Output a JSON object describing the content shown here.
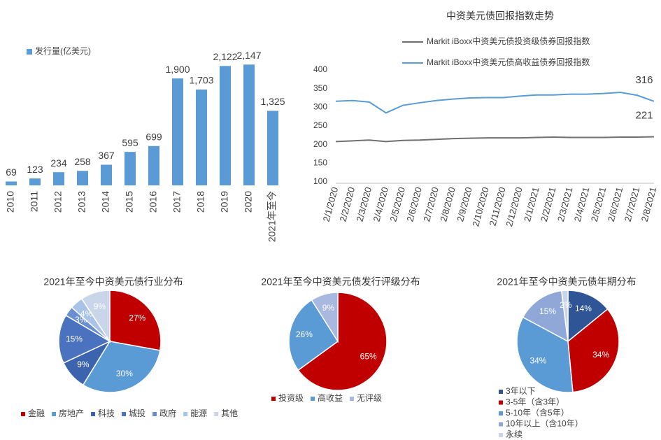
{
  "chart_data": [
    {
      "type": "bar",
      "legend": "发行量(亿美元)",
      "color": "#5b9bd5",
      "categories": [
        "2010",
        "2011",
        "2012",
        "2013",
        "2014",
        "2015",
        "2016",
        "2017",
        "2018",
        "2019",
        "2020",
        "2021年至今"
      ],
      "values": [
        69,
        123,
        234,
        258,
        367,
        595,
        699,
        1900,
        1703,
        2122,
        2147,
        1325
      ],
      "value_labels": [
        "69",
        "123",
        "234",
        "258",
        "367",
        "595",
        "699",
        "1,900",
        "1,703",
        "2,122",
        "2,147",
        "1,325"
      ],
      "ylim": [
        0,
        2300
      ]
    },
    {
      "type": "line",
      "title": "中资美元债回报指数走势",
      "categories": [
        "2/1/2020",
        "2/2/2020",
        "2/3/2020",
        "2/4/2020",
        "2/5/2020",
        "2/6/2020",
        "2/7/2020",
        "2/8/2020",
        "2/9/2020",
        "2/10/2020",
        "2/11/2020",
        "2/12/2020",
        "2/1/2021",
        "2/2/2021",
        "2/3/2021",
        "2/4/2021",
        "2/5/2021",
        "2/6/2021",
        "2/7/2021",
        "2/8/2021"
      ],
      "series": [
        {
          "name": "Markit iBoxx中资美元债投资级债券回报指数",
          "color": "#707070",
          "values": [
            208,
            210,
            212,
            208,
            211,
            212,
            214,
            216,
            217,
            218,
            218,
            218,
            219,
            220,
            219,
            219,
            219,
            220,
            220,
            221
          ]
        },
        {
          "name": "Markit iBoxx中资美元债高收益债券回报指数",
          "color": "#5b9bd5",
          "values": [
            316,
            318,
            314,
            285,
            305,
            312,
            318,
            322,
            325,
            326,
            326,
            330,
            333,
            333,
            335,
            335,
            337,
            340,
            332,
            316
          ]
        }
      ],
      "ylim": [
        100,
        400
      ],
      "yticks": [
        100,
        150,
        200,
        250,
        300,
        350,
        400
      ]
    },
    {
      "type": "pie",
      "title": "2021年至今中资美元债行业分布",
      "legend": "bottom",
      "categories": [
        "金融",
        "房地产",
        "科技",
        "城投",
        "政府",
        "能源",
        "其他"
      ],
      "values": [
        27,
        30,
        9,
        15,
        3,
        4,
        9
      ],
      "value_labels": [
        "27%",
        "30%",
        "9%",
        "15%",
        "3%",
        "4%",
        "9%"
      ],
      "colors": [
        "#c00000",
        "#5b9bd5",
        "#3c64ae",
        "#4a72bf",
        "#6a8fd0",
        "#a9c3e6",
        "#c9d6ea"
      ]
    },
    {
      "type": "pie",
      "title": "2021年至今中资美元债发行评级分布",
      "legend": "bottom",
      "categories": [
        "投资级",
        "高收益",
        "无评级"
      ],
      "values": [
        65,
        26,
        9
      ],
      "value_labels": [
        "65%",
        "26%",
        "9%"
      ],
      "colors": [
        "#c00000",
        "#5b9bd5",
        "#a9b8e0"
      ]
    },
    {
      "type": "pie",
      "title": "2021年至今中资美元债年期分布",
      "legend": "left-stacked",
      "categories": [
        "3年以下",
        "3-5年（含3年）",
        "5-10年（含5年）",
        "10年以上（含10年）",
        "永续"
      ],
      "values": [
        14,
        34,
        34,
        15,
        2
      ],
      "value_labels": [
        "14%",
        "34%",
        "34%",
        "15%",
        "2%"
      ],
      "colors": [
        "#2f5597",
        "#c00000",
        "#5b9bd5",
        "#8fa8d8",
        "#c9d6ea"
      ]
    }
  ]
}
